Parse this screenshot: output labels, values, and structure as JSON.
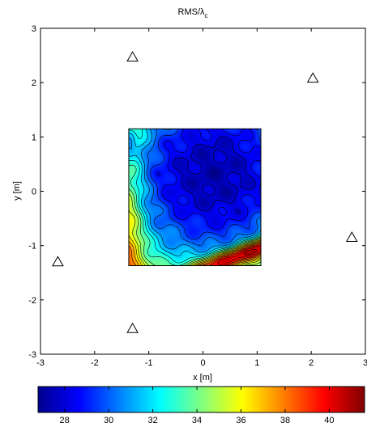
{
  "chart_data": {
    "type": "heatmap",
    "title_main": "RMS/λ",
    "title_sub": "c",
    "xlabel": "x [m]",
    "ylabel": "y [m]",
    "xlim": [
      -3,
      3
    ],
    "ylim": [
      -3,
      3
    ],
    "xticks": [
      "-3",
      "-2",
      "-1",
      "0",
      "1",
      "2",
      "3"
    ],
    "yticks": [
      "-3",
      "-2",
      "-1",
      "0",
      "1",
      "2",
      "3"
    ],
    "heatmap_extent": {
      "x": [
        -1.37,
        1.07
      ],
      "y": [
        -1.37,
        1.15
      ]
    },
    "markers": [
      {
        "x": -1.3,
        "y": 2.47
      },
      {
        "x": 2.03,
        "y": 2.08
      },
      {
        "x": 2.75,
        "y": -0.85
      },
      {
        "x": -2.68,
        "y": -1.3
      },
      {
        "x": -1.3,
        "y": -2.53
      }
    ],
    "colorbar": {
      "range": [
        26.8,
        41.6
      ],
      "ticks": [
        "28",
        "30",
        "32",
        "34",
        "36",
        "38",
        "40"
      ],
      "colormap": "jet"
    },
    "field": {
      "min_value": 27.5,
      "center": {
        "x": 0.2,
        "y": 0.3
      },
      "left_edge_value": 33.5,
      "bottom_right_value": 40.5,
      "top_left_dark_value": 27.0
    }
  }
}
